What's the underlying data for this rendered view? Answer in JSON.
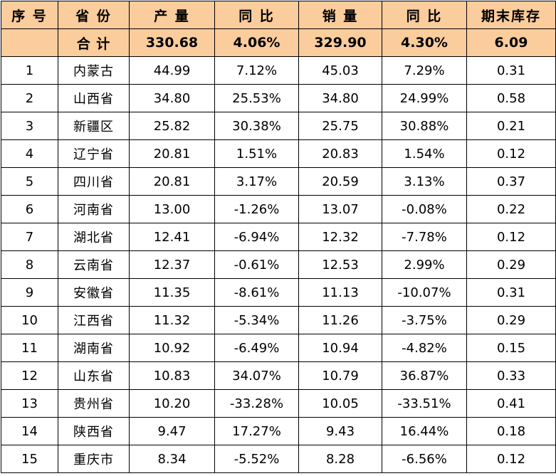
{
  "headers": [
    "序 号",
    "省 份",
    "产 量",
    "同 比",
    "销 量",
    "同 比",
    "期末库存"
  ],
  "total": {
    "index": "",
    "province": "合 计",
    "production": "330.68",
    "production_yoy": "4.06%",
    "sales": "329.90",
    "sales_yoy": "4.30%",
    "inventory": "6.09"
  },
  "rows": [
    [
      "1",
      "内蒙古",
      "44.99",
      "7.12%",
      "45.03",
      "7.29%",
      "0.31"
    ],
    [
      "2",
      "山西省",
      "34.80",
      "25.53%",
      "34.80",
      "24.99%",
      "0.58"
    ],
    [
      "3",
      "新疆区",
      "25.82",
      "30.38%",
      "25.75",
      "30.88%",
      "0.21"
    ],
    [
      "4",
      "辽宁省",
      "20.81",
      "1.51%",
      "20.83",
      "1.54%",
      "0.12"
    ],
    [
      "5",
      "四川省",
      "20.81",
      "3.17%",
      "20.59",
      "3.13%",
      "0.37"
    ],
    [
      "6",
      "河南省",
      "13.00",
      "-1.26%",
      "13.07",
      "-0.08%",
      "0.22"
    ],
    [
      "7",
      "湖北省",
      "12.41",
      "-6.94%",
      "12.32",
      "-7.78%",
      "0.12"
    ],
    [
      "8",
      "云南省",
      "12.37",
      "-0.61%",
      "12.53",
      "2.99%",
      "0.29"
    ],
    [
      "9",
      "安徽省",
      "11.35",
      "-8.61%",
      "11.13",
      "-10.07%",
      "0.31"
    ],
    [
      "10",
      "江西省",
      "11.32",
      "-5.34%",
      "11.26",
      "-3.75%",
      "0.29"
    ],
    [
      "11",
      "湖南省",
      "10.92",
      "-6.49%",
      "10.94",
      "-4.82%",
      "0.15"
    ],
    [
      "12",
      "山东省",
      "10.83",
      "34.07%",
      "10.79",
      "36.87%",
      "0.33"
    ],
    [
      "13",
      "贵州省",
      "10.20",
      "-33.28%",
      "10.05",
      "-33.51%",
      "0.41"
    ],
    [
      "14",
      "陕西省",
      "9.47",
      "17.27%",
      "9.43",
      "16.44%",
      "0.18"
    ],
    [
      "15",
      "重庆市",
      "8.34",
      "-5.52%",
      "8.28",
      "-6.56%",
      "0.12"
    ]
  ]
}
